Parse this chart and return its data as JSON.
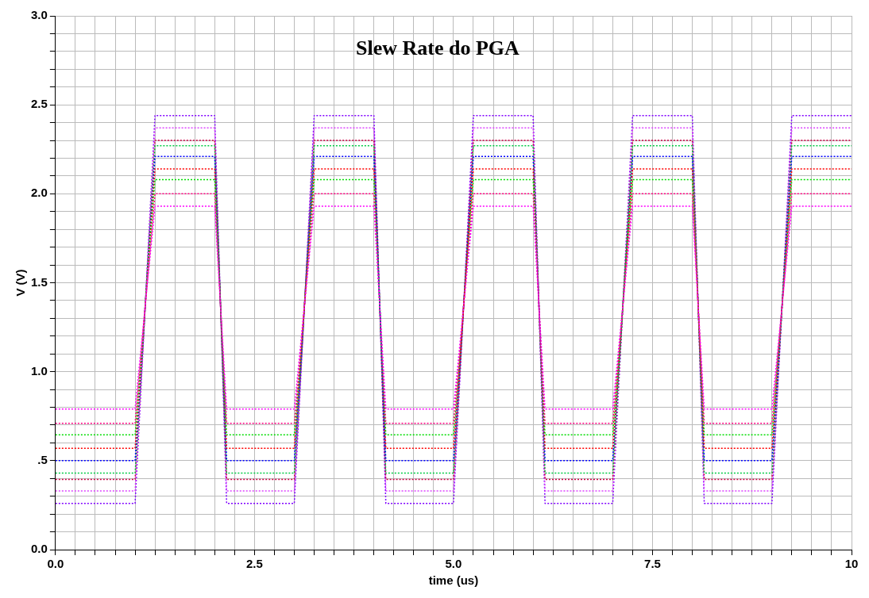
{
  "chart_data": {
    "type": "line",
    "title": "Slew Rate do PGA",
    "xlabel": "time (us)",
    "ylabel": "V (V)",
    "xlim": [
      0,
      10
    ],
    "ylim": [
      0,
      3
    ],
    "xticks": [
      {
        "value": 0,
        "label": "0.0"
      },
      {
        "value": 0.25,
        "label": null
      },
      {
        "value": 0.5,
        "label": null
      },
      {
        "value": 0.75,
        "label": null
      },
      {
        "value": 1,
        "label": null
      },
      {
        "value": 1.25,
        "label": null
      },
      {
        "value": 1.5,
        "label": null
      },
      {
        "value": 1.75,
        "label": null
      },
      {
        "value": 2,
        "label": null
      },
      {
        "value": 2.25,
        "label": null
      },
      {
        "value": 2.5,
        "label": "2.5"
      },
      {
        "value": 2.75,
        "label": null
      },
      {
        "value": 3,
        "label": null
      },
      {
        "value": 3.25,
        "label": null
      },
      {
        "value": 3.5,
        "label": null
      },
      {
        "value": 3.75,
        "label": null
      },
      {
        "value": 4,
        "label": null
      },
      {
        "value": 4.25,
        "label": null
      },
      {
        "value": 4.5,
        "label": null
      },
      {
        "value": 4.75,
        "label": null
      },
      {
        "value": 5,
        "label": "5.0"
      },
      {
        "value": 5.25,
        "label": null
      },
      {
        "value": 5.5,
        "label": null
      },
      {
        "value": 5.75,
        "label": null
      },
      {
        "value": 6,
        "label": null
      },
      {
        "value": 6.25,
        "label": null
      },
      {
        "value": 6.5,
        "label": null
      },
      {
        "value": 6.75,
        "label": null
      },
      {
        "value": 7,
        "label": null
      },
      {
        "value": 7.25,
        "label": null
      },
      {
        "value": 7.5,
        "label": "7.5"
      },
      {
        "value": 7.75,
        "label": null
      },
      {
        "value": 8,
        "label": null
      },
      {
        "value": 8.25,
        "label": null
      },
      {
        "value": 8.5,
        "label": null
      },
      {
        "value": 8.75,
        "label": null
      },
      {
        "value": 9,
        "label": null
      },
      {
        "value": 9.25,
        "label": null
      },
      {
        "value": 9.5,
        "label": null
      },
      {
        "value": 9.75,
        "label": null
      },
      {
        "value": 10,
        "label": "10"
      }
    ],
    "yticks": [
      {
        "value": 0,
        "label": "0.0"
      },
      {
        "value": 0.1,
        "label": null
      },
      {
        "value": 0.2,
        "label": null
      },
      {
        "value": 0.3,
        "label": null
      },
      {
        "value": 0.4,
        "label": null
      },
      {
        "value": 0.5,
        "label": ".5"
      },
      {
        "value": 0.6,
        "label": null
      },
      {
        "value": 0.7,
        "label": null
      },
      {
        "value": 0.8,
        "label": null
      },
      {
        "value": 0.9,
        "label": null
      },
      {
        "value": 1,
        "label": "1.0"
      },
      {
        "value": 1.1,
        "label": null
      },
      {
        "value": 1.2,
        "label": null
      },
      {
        "value": 1.3,
        "label": null
      },
      {
        "value": 1.4,
        "label": null
      },
      {
        "value": 1.5,
        "label": "1.5"
      },
      {
        "value": 1.6,
        "label": null
      },
      {
        "value": 1.7,
        "label": null
      },
      {
        "value": 1.8,
        "label": null
      },
      {
        "value": 1.9,
        "label": null
      },
      {
        "value": 2,
        "label": "2.0"
      },
      {
        "value": 2.1,
        "label": null
      },
      {
        "value": 2.2,
        "label": null
      },
      {
        "value": 2.3,
        "label": null
      },
      {
        "value": 2.4,
        "label": null
      },
      {
        "value": 2.5,
        "label": "2.5"
      },
      {
        "value": 2.6,
        "label": null
      },
      {
        "value": 2.7,
        "label": null
      },
      {
        "value": 2.8,
        "label": null
      },
      {
        "value": 2.9,
        "label": null
      },
      {
        "value": 3,
        "label": "3.0"
      }
    ],
    "grid": true,
    "legend": false,
    "marker": "none",
    "line_style": "dotted",
    "x": [
      0,
      1,
      1.25,
      2,
      2.15,
      3,
      3.25,
      4,
      4.15,
      5,
      5.25,
      6,
      6.15,
      7,
      7.25,
      8,
      8.15,
      9,
      9.25,
      10
    ],
    "series": [
      {
        "color": "#ff00ff",
        "values": [
          0.79,
          0.79,
          1.93,
          1.93,
          0.79,
          0.79,
          1.93,
          1.93,
          0.79,
          0.79,
          1.93,
          1.93,
          0.79,
          0.79,
          1.93,
          1.93,
          0.79,
          0.79,
          1.93,
          1.93
        ]
      },
      {
        "color": "#ff0080",
        "values": [
          0.71,
          0.71,
          2.0,
          2.0,
          0.71,
          0.71,
          2.0,
          2.0,
          0.71,
          0.71,
          2.0,
          2.0,
          0.71,
          0.71,
          2.0,
          2.0,
          0.71,
          0.71,
          2.0,
          2.0
        ]
      },
      {
        "color": "#00dd00",
        "values": [
          0.645,
          0.645,
          2.08,
          2.08,
          0.645,
          0.645,
          2.08,
          2.08,
          0.645,
          0.645,
          2.08,
          2.08,
          0.645,
          0.645,
          2.08,
          2.08,
          0.645,
          0.645,
          2.08,
          2.08
        ]
      },
      {
        "color": "#ff0000",
        "values": [
          0.57,
          0.57,
          2.14,
          2.14,
          0.57,
          0.57,
          2.14,
          2.14,
          0.57,
          0.57,
          2.14,
          2.14,
          0.57,
          0.57,
          2.14,
          2.14,
          0.57,
          0.57,
          2.14,
          2.14
        ]
      },
      {
        "color": "#0000ff",
        "values": [
          0.5,
          0.5,
          2.21,
          2.21,
          0.5,
          0.5,
          2.21,
          2.21,
          0.5,
          0.5,
          2.21,
          2.21,
          0.5,
          0.5,
          2.21,
          2.21,
          0.5,
          0.5,
          2.21,
          2.21
        ]
      },
      {
        "color": "#00cc44",
        "values": [
          0.43,
          0.43,
          2.27,
          2.27,
          0.43,
          0.43,
          2.27,
          2.27,
          0.43,
          0.43,
          2.27,
          2.27,
          0.43,
          0.43,
          2.27,
          2.27,
          0.43,
          0.43,
          2.27,
          2.27
        ]
      },
      {
        "color": "#cc0044",
        "values": [
          0.395,
          0.395,
          2.3,
          2.3,
          0.395,
          0.395,
          2.3,
          2.3,
          0.395,
          0.395,
          2.3,
          2.3,
          0.395,
          0.395,
          2.3,
          2.3,
          0.395,
          0.395,
          2.3,
          2.3
        ]
      },
      {
        "color": "#dd44ff",
        "values": [
          0.33,
          0.33,
          2.37,
          2.37,
          0.33,
          0.33,
          2.37,
          2.37,
          0.33,
          0.33,
          2.37,
          2.37,
          0.33,
          0.33,
          2.37,
          2.37,
          0.33,
          0.33,
          2.37,
          2.37
        ]
      },
      {
        "color": "#8000ff",
        "values": [
          0.26,
          0.26,
          2.44,
          2.44,
          0.26,
          0.26,
          2.44,
          2.44,
          0.26,
          0.26,
          2.44,
          2.44,
          0.26,
          0.26,
          2.44,
          2.44,
          0.26,
          0.26,
          2.44,
          2.44
        ]
      }
    ]
  }
}
